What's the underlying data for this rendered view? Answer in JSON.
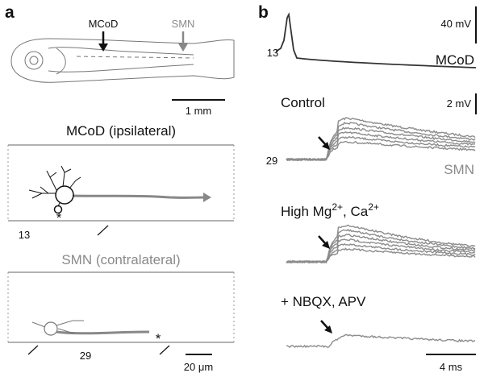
{
  "panel_a": {
    "label": "a",
    "arrow_mcod": "MCoD",
    "arrow_smn": "SMN",
    "scale_fish": "1 mm",
    "mcod_title": "MCoD (ipsilateral)",
    "mcod_asterisk": "*",
    "mcod_segment": "13",
    "smn_title": "SMN (contralateral)",
    "smn_asterisk": "*",
    "smn_segment": "29",
    "scale_cell": "20 μm"
  },
  "panel_b": {
    "label": "b",
    "scale_mcod": "40 mV",
    "mcod_segment": "13",
    "mcod_name": "MCoD",
    "control": "Control",
    "scale_smn": "2 mV",
    "smn_segment": "29",
    "smn_name": "SMN",
    "high_mg_ca": [
      "High Mg",
      "2+",
      ", Ca",
      "2+"
    ],
    "nbqx": "+ NBQX, APV",
    "scale_time": "4 ms"
  }
}
